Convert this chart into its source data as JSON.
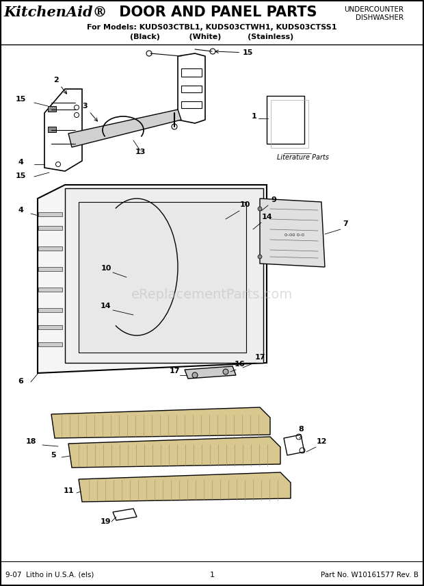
{
  "title_brand": "KitchenAid",
  "title_dot": "®",
  "title_main": " DOOR AND PANEL PARTS",
  "subtitle1": "For Models: KUDS03CTBL1, KUDS03CTWH1, KUDS03CTSS1",
  "subtitle2": "(Black)           (White)          (Stainless)",
  "top_right1": "UNDERCOUNTER",
  "top_right2": "DISHWASHER",
  "footer_left": "9-07  Litho in U.S.A. (els)",
  "footer_center": "1",
  "footer_right": "Part No. W10161577 Rev. B",
  "watermark": "eReplacementParts.com",
  "bg_color": "#ffffff",
  "line_color": "#000000",
  "lit_parts_label": "Literature Parts"
}
